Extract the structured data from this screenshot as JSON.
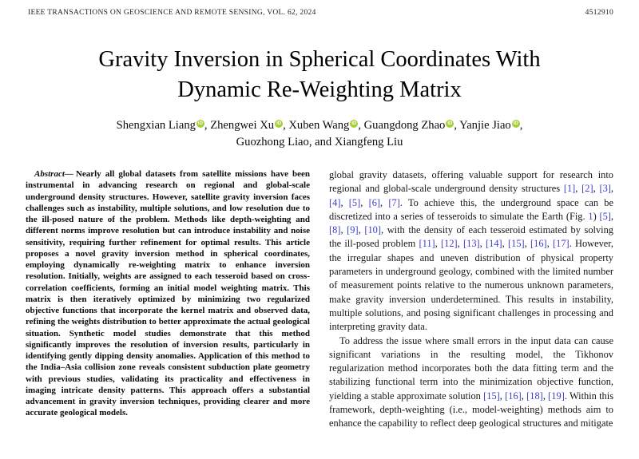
{
  "colors": {
    "citation_link": "#3e3ec9",
    "orcid_green": "#a6ce39"
  },
  "running_head": {
    "journal": "IEEE TRANSACTIONS ON GEOSCIENCE AND REMOTE SENSING, VOL. 62, 2024",
    "article_number": "4512910"
  },
  "title": {
    "lines": [
      "Gravity Inversion in Spherical Coordinates With",
      "Dynamic Re-Weighting Matrix"
    ]
  },
  "authors": {
    "orcid_icon_text": "iD",
    "line1": [
      {
        "name": "Shengxian Liang",
        "orcid": true
      },
      {
        "name": "Zhengwei Xu",
        "orcid": true
      },
      {
        "name": "Xuben Wang",
        "orcid": true
      },
      {
        "name": "Guangdong Zhao",
        "orcid": true
      },
      {
        "name": "Yanjie Jiao",
        "orcid": true
      }
    ],
    "line2": [
      {
        "name": "Guozhong Liao",
        "orcid": false
      },
      {
        "name": "Xiangfeng Liu",
        "orcid": false
      }
    ]
  },
  "abstract": {
    "label": "Abstract—",
    "text": "Nearly all global datasets from satellite missions have been instrumental in advancing research on regional and global-scale underground density structures. However, satellite gravity inversion faces challenges such as instability, multiple solutions, and low resolution due to the ill-posed nature of the problem. Methods like depth-weighting and different norms improve resolution but can introduce instability and noise sensitivity, requiring further refinement for optimal results. This article proposes a novel gravity inversion method in spherical coordinates, employing dynamically re-weighting matrix to enhance inversion resolution. Initially, weights are assigned to each tesseroid based on cross-correlation coefficients, forming an initial model weighting matrix. This matrix is then iteratively optimized by minimizing two regularized objective functions that incorporate the kernel matrix and observed data, refining the weights distribution to better approximate the actual geological situation. Synthetic model studies demonstrate that this method significantly improves the resolution of inversion results, particularly in identifying gently dipping density anomalies. Application of this method to the India–Asia collision zone reveals consistent subduction plate geometry with previous studies, validating its practicality and effectiveness in imaging intricate density patterns. This approach offers a substantial advancement in gravity inversion techniques, providing clearer and more accurate geological models."
  },
  "body": {
    "paragraph1": "global gravity datasets, offering valuable support for research into regional and global-scale underground density structures [1], [2], [3], [4], [5], [6], [7]. To achieve this, the underground space can be discretized into a series of tesseroids to simulate the Earth (Fig. 1) [5], [8], [9], [10], with the density of each tesseroid estimated by solving the ill-posed problem [11], [12], [13], [14], [15], [16], [17]. However, the irregular shapes and uneven distribution of physical property parameters in underground geology, combined with the limited number of measurement points relative to the numerous unknown parameters, make gravity inversion underdetermined. This results in instability, multiple solutions, and posing significant challenges in processing and interpreting gravity data.",
    "paragraph2": "To address the issue where small errors in the input data can cause significant variations in the resulting model, the Tikhonov regularization method incorporates both the data fitting term and the stabilizing functional term into the minimization objective function, yielding a stable approximate solution [15], [16], [18], [19]. Within this framework, depth-weighting (i.e., model-weighting) methods aim to enhance the capability to reflect deep geological structures and mitigate"
  }
}
